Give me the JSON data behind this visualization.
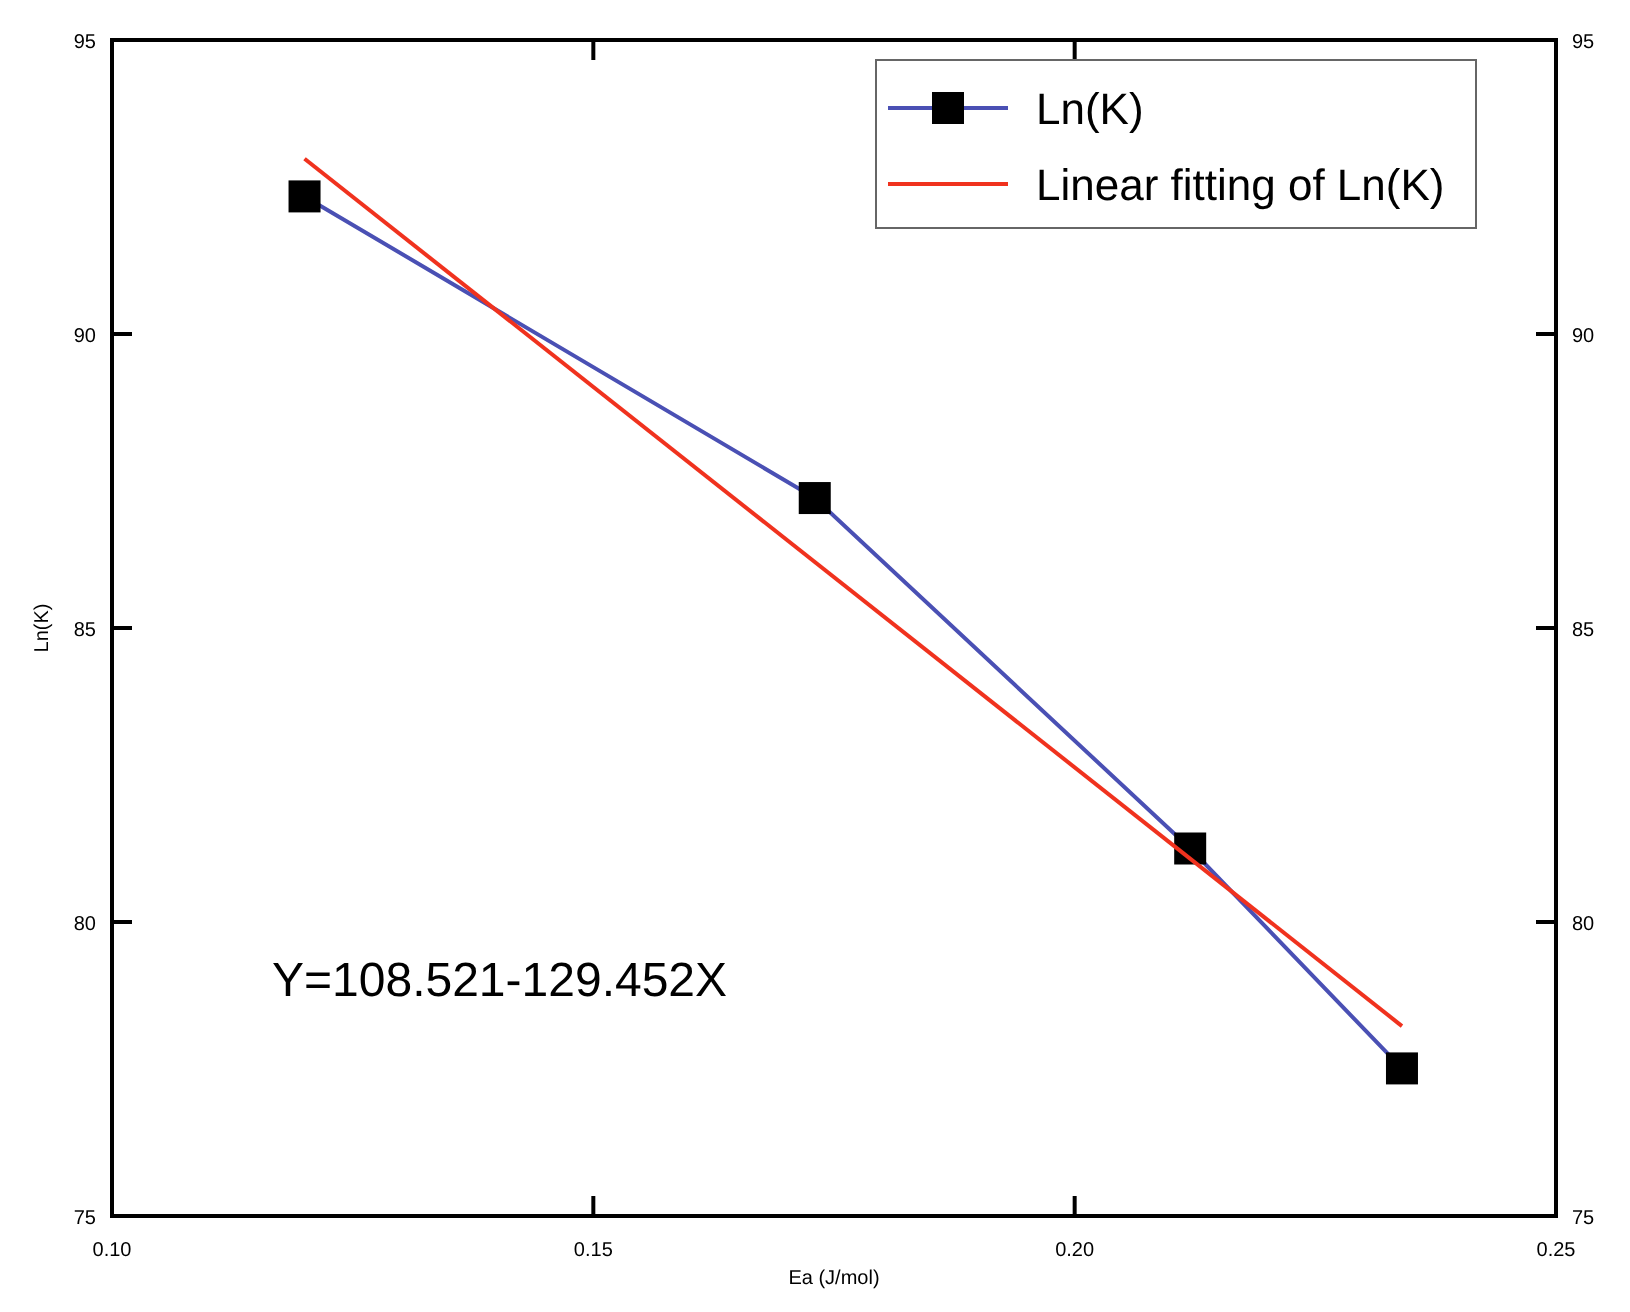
{
  "chart_data": {
    "type": "line",
    "xlabel": "Ea (J/mol)",
    "ylabel": "Ln(K)",
    "xlim": [
      0.1,
      0.25
    ],
    "xticks": [
      {
        "value": 0.1,
        "label": "0.10"
      },
      0.15,
      {
        "value": 0.2,
        "label": "0.20"
      },
      0.25
    ],
    "ylim": [
      75,
      95
    ],
    "yticks": [
      75,
      80,
      85,
      90,
      95
    ],
    "y2lim": [
      75,
      95
    ],
    "y2ticks": [
      75,
      80,
      85,
      90,
      95
    ],
    "legend": "top right",
    "grid": false,
    "series": [
      {
        "name": "Ln(K)",
        "color": "#4a50b4",
        "x": [
          0.12,
          0.173,
          0.212,
          0.234
        ],
        "values": [
          92.34,
          87.21,
          81.25,
          77.51
        ],
        "marker": "square",
        "line_style": "solid"
      },
      {
        "name": "Linear fitting of Ln(K)",
        "color": "#f0321e",
        "x": [
          0.12,
          0.234
        ],
        "values": [
          92.98,
          78.23
        ],
        "marker": "none",
        "line_style": "solid"
      }
    ],
    "annotations": [
      "Y=108.521-129.452X"
    ]
  }
}
